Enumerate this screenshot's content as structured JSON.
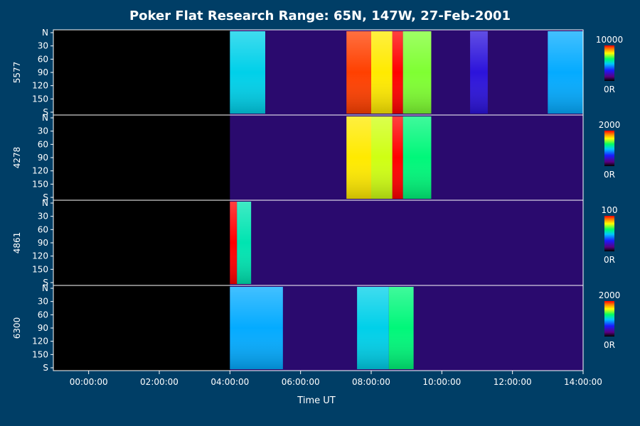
{
  "chart_data": {
    "type": "heatmap",
    "title": "Poker Flat Research Range: 65N, 147W, 27-Feb-2001",
    "xlabel": "Time UT",
    "x_range_hours": [
      -1.0,
      14.0
    ],
    "x_ticks": [
      {
        "hour": 0,
        "label": "00:00:00"
      },
      {
        "hour": 2,
        "label": "02:00:00"
      },
      {
        "hour": 4,
        "label": "04:00:00"
      },
      {
        "hour": 6,
        "label": "06:00:00"
      },
      {
        "hour": 8,
        "label": "08:00:00"
      },
      {
        "hour": 10,
        "label": "10:00:00"
      },
      {
        "hour": 12,
        "label": "12:00:00"
      },
      {
        "hour": 14,
        "label": "14:00:00"
      }
    ],
    "y_ticks": [
      "N",
      "30",
      "60",
      "90",
      "120",
      "150",
      "S"
    ],
    "panels": [
      {
        "wavelength": "5577",
        "scale_max": "10000",
        "scale_min": "0R",
        "features": [
          {
            "start": 4.0,
            "end": 5.0,
            "level": 0.5
          },
          {
            "start": 7.3,
            "end": 8.0,
            "level": 0.95
          },
          {
            "start": 8.0,
            "end": 8.6,
            "level": 0.8
          },
          {
            "start": 8.6,
            "end": 8.9,
            "level": 1.0
          },
          {
            "start": 8.9,
            "end": 9.7,
            "level": 0.7
          },
          {
            "start": 10.8,
            "end": 11.3,
            "level": 0.25
          },
          {
            "start": 13.0,
            "end": 14.0,
            "level": 0.45
          }
        ]
      },
      {
        "wavelength": "4278",
        "scale_max": "2000",
        "scale_min": "0R",
        "features": [
          {
            "start": 7.3,
            "end": 8.0,
            "level": 0.8
          },
          {
            "start": 8.0,
            "end": 8.6,
            "level": 0.75
          },
          {
            "start": 8.6,
            "end": 8.9,
            "level": 1.0
          },
          {
            "start": 8.9,
            "end": 9.7,
            "level": 0.6
          }
        ]
      },
      {
        "wavelength": "4861",
        "scale_max": "100",
        "scale_min": "0R",
        "features": [
          {
            "start": 4.0,
            "end": 4.2,
            "level": 1.0
          },
          {
            "start": 4.2,
            "end": 4.6,
            "level": 0.55
          }
        ]
      },
      {
        "wavelength": "6300",
        "scale_max": "2000",
        "scale_min": "0R",
        "features": [
          {
            "start": 4.0,
            "end": 5.5,
            "level": 0.45
          },
          {
            "start": 7.6,
            "end": 8.5,
            "level": 0.5
          },
          {
            "start": 8.5,
            "end": 9.2,
            "level": 0.6
          }
        ]
      }
    ],
    "grid": false
  }
}
